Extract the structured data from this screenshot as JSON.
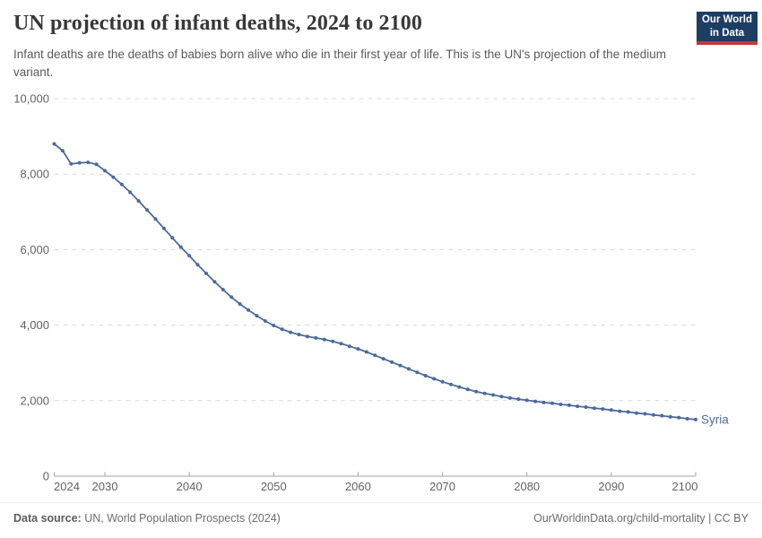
{
  "header": {
    "title": "UN projection of infant deaths, 2024 to 2100",
    "subtitle": "Infant deaths are the deaths of babies born alive who die in their first year of life. This is the UN's projection of the medium variant.",
    "logo": {
      "line1": "Our World",
      "line2": "in Data",
      "bg_color": "#1d3d63",
      "accent_color": "#bf3a36"
    }
  },
  "chart_data": {
    "type": "line",
    "title": "UN projection of infant deaths, 2024 to 2100",
    "entity": "Syria",
    "end_label": "Syria",
    "line_color": "#4c6a9c",
    "grid": "horizontal-dashed",
    "xlabel": "",
    "ylabel": "",
    "xlim": [
      2024,
      2100
    ],
    "ylim": [
      0,
      10000
    ],
    "xticks": [
      2024,
      2030,
      2040,
      2050,
      2060,
      2070,
      2080,
      2090,
      2100
    ],
    "yticks": [
      0,
      2000,
      4000,
      6000,
      8000,
      10000
    ],
    "x": [
      2024,
      2025,
      2026,
      2027,
      2028,
      2029,
      2030,
      2031,
      2032,
      2033,
      2034,
      2035,
      2036,
      2037,
      2038,
      2039,
      2040,
      2041,
      2042,
      2043,
      2044,
      2045,
      2046,
      2047,
      2048,
      2049,
      2050,
      2051,
      2052,
      2053,
      2054,
      2055,
      2056,
      2057,
      2058,
      2059,
      2060,
      2061,
      2062,
      2063,
      2064,
      2065,
      2066,
      2067,
      2068,
      2069,
      2070,
      2071,
      2072,
      2073,
      2074,
      2075,
      2076,
      2077,
      2078,
      2079,
      2080,
      2081,
      2082,
      2083,
      2084,
      2085,
      2086,
      2087,
      2088,
      2089,
      2090,
      2091,
      2092,
      2093,
      2094,
      2095,
      2096,
      2097,
      2098,
      2099,
      2100
    ],
    "series": [
      {
        "name": "Syria",
        "values": [
          8800,
          8620,
          8270,
          8300,
          8310,
          8260,
          8090,
          7920,
          7730,
          7520,
          7290,
          7050,
          6810,
          6560,
          6310,
          6070,
          5840,
          5600,
          5370,
          5150,
          4940,
          4740,
          4560,
          4400,
          4250,
          4110,
          3990,
          3890,
          3810,
          3750,
          3700,
          3660,
          3620,
          3570,
          3510,
          3440,
          3370,
          3290,
          3200,
          3110,
          3020,
          2930,
          2840,
          2750,
          2660,
          2580,
          2500,
          2430,
          2360,
          2300,
          2240,
          2190,
          2150,
          2110,
          2070,
          2040,
          2010,
          1980,
          1950,
          1930,
          1900,
          1880,
          1850,
          1830,
          1800,
          1780,
          1750,
          1720,
          1700,
          1670,
          1650,
          1620,
          1600,
          1570,
          1550,
          1520,
          1500
        ]
      }
    ]
  },
  "footer": {
    "source_label": "Data source:",
    "source_text": " UN, World Population Prospects (2024)",
    "link_text": "OurWorldinData.org/child-mortality | CC BY"
  }
}
